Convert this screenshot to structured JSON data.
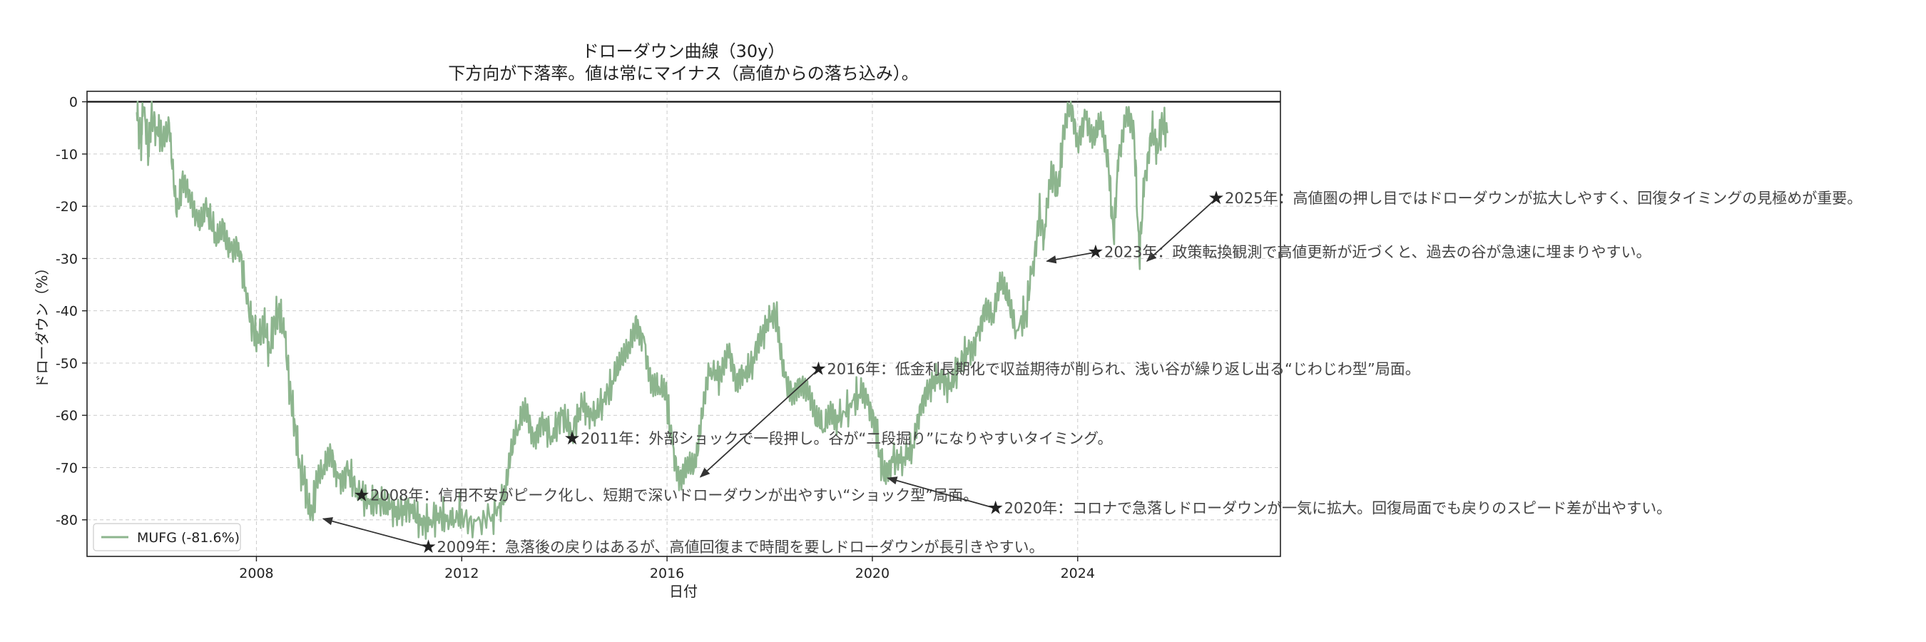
{
  "chart_data": {
    "type": "line",
    "title": "ドローダウン曲線（30y）",
    "subtitle": "下方向が下落率。値は常にマイナス（高値からの落ち込み）。",
    "xlabel": "日付",
    "ylabel": "ドローダウン（%）",
    "xlim": [
      2004.7,
      2027.95
    ],
    "ylim": [
      -87,
      2
    ],
    "x_ticks": [
      "2008",
      "2012",
      "2016",
      "2020",
      "2024"
    ],
    "y_ticks": [
      0,
      -10,
      -20,
      -30,
      -40,
      -50,
      -60,
      -70,
      -80
    ],
    "grid": true,
    "legend_position": "lower-left",
    "series": [
      {
        "name": "MUFG (-81.6%)",
        "color": "#8db58e",
        "points": [
          [
            2005.67,
            -2
          ],
          [
            2005.75,
            -8
          ],
          [
            2005.8,
            -1
          ],
          [
            2005.9,
            -10
          ],
          [
            2005.95,
            -3
          ],
          [
            2006.05,
            -5
          ],
          [
            2006.15,
            -6
          ],
          [
            2006.3,
            -4
          ],
          [
            2006.45,
            -22
          ],
          [
            2006.55,
            -15
          ],
          [
            2006.7,
            -17
          ],
          [
            2006.85,
            -22
          ],
          [
            2007.0,
            -20
          ],
          [
            2007.2,
            -25
          ],
          [
            2007.35,
            -23
          ],
          [
            2007.5,
            -28
          ],
          [
            2007.65,
            -27
          ],
          [
            2007.85,
            -40
          ],
          [
            2007.95,
            -44
          ],
          [
            2008.05,
            -46
          ],
          [
            2008.15,
            -42
          ],
          [
            2008.25,
            -48
          ],
          [
            2008.35,
            -42
          ],
          [
            2008.45,
            -40
          ],
          [
            2008.55,
            -45
          ],
          [
            2008.65,
            -55
          ],
          [
            2008.75,
            -62
          ],
          [
            2008.85,
            -70
          ],
          [
            2008.95,
            -73
          ],
          [
            2009.05,
            -80
          ],
          [
            2009.15,
            -75
          ],
          [
            2009.3,
            -71
          ],
          [
            2009.45,
            -67
          ],
          [
            2009.6,
            -72
          ],
          [
            2009.75,
            -70
          ],
          [
            2009.95,
            -74
          ],
          [
            2010.2,
            -77
          ],
          [
            2010.4,
            -76
          ],
          [
            2010.6,
            -78
          ],
          [
            2010.8,
            -79
          ],
          [
            2011.0,
            -77
          ],
          [
            2011.2,
            -81
          ],
          [
            2011.4,
            -80
          ],
          [
            2011.6,
            -79
          ],
          [
            2011.8,
            -81
          ],
          [
            2012.0,
            -78
          ],
          [
            2012.3,
            -80
          ],
          [
            2012.6,
            -79
          ],
          [
            2012.8,
            -77
          ],
          [
            2012.95,
            -68
          ],
          [
            2013.1,
            -63
          ],
          [
            2013.25,
            -60
          ],
          [
            2013.4,
            -66
          ],
          [
            2013.55,
            -61
          ],
          [
            2013.75,
            -64
          ],
          [
            2013.95,
            -60
          ],
          [
            2014.15,
            -63
          ],
          [
            2014.35,
            -58
          ],
          [
            2014.55,
            -61
          ],
          [
            2014.75,
            -57
          ],
          [
            2014.95,
            -54
          ],
          [
            2015.1,
            -50
          ],
          [
            2015.25,
            -46
          ],
          [
            2015.4,
            -41
          ],
          [
            2015.55,
            -45
          ],
          [
            2015.7,
            -54
          ],
          [
            2015.85,
            -55
          ],
          [
            2016.0,
            -58
          ],
          [
            2016.1,
            -65
          ],
          [
            2016.25,
            -71
          ],
          [
            2016.4,
            -68
          ],
          [
            2016.55,
            -70
          ],
          [
            2016.7,
            -60
          ],
          [
            2016.85,
            -51
          ],
          [
            2017.05,
            -53
          ],
          [
            2017.2,
            -49
          ],
          [
            2017.35,
            -55
          ],
          [
            2017.5,
            -52
          ],
          [
            2017.7,
            -50
          ],
          [
            2017.85,
            -45
          ],
          [
            2018.05,
            -40
          ],
          [
            2018.15,
            -42
          ],
          [
            2018.3,
            -52
          ],
          [
            2018.45,
            -55
          ],
          [
            2018.6,
            -54
          ],
          [
            2018.75,
            -57
          ],
          [
            2018.9,
            -62
          ],
          [
            2019.05,
            -63
          ],
          [
            2019.2,
            -59
          ],
          [
            2019.35,
            -61
          ],
          [
            2019.55,
            -58
          ],
          [
            2019.75,
            -56
          ],
          [
            2019.9,
            -58
          ],
          [
            2020.05,
            -61
          ],
          [
            2020.15,
            -68
          ],
          [
            2020.25,
            -72
          ],
          [
            2020.4,
            -69
          ],
          [
            2020.6,
            -68
          ],
          [
            2020.8,
            -66
          ],
          [
            2020.95,
            -60
          ],
          [
            2021.1,
            -55
          ],
          [
            2021.3,
            -52
          ],
          [
            2021.5,
            -55
          ],
          [
            2021.7,
            -50
          ],
          [
            2021.9,
            -47
          ],
          [
            2022.05,
            -44
          ],
          [
            2022.2,
            -39
          ],
          [
            2022.35,
            -42
          ],
          [
            2022.5,
            -36
          ],
          [
            2022.65,
            -39
          ],
          [
            2022.8,
            -44
          ],
          [
            2023.0,
            -40
          ],
          [
            2023.1,
            -33
          ],
          [
            2023.25,
            -21
          ],
          [
            2023.35,
            -26
          ],
          [
            2023.5,
            -13
          ],
          [
            2023.6,
            -18
          ],
          [
            2023.7,
            -9
          ],
          [
            2023.85,
            -1
          ],
          [
            2024.0,
            -8
          ],
          [
            2024.15,
            -2
          ],
          [
            2024.3,
            -6
          ],
          [
            2024.45,
            -2
          ],
          [
            2024.6,
            -12
          ],
          [
            2024.7,
            -26
          ],
          [
            2024.8,
            -10
          ],
          [
            2024.95,
            -1
          ],
          [
            2025.1,
            -6
          ],
          [
            2025.2,
            -30
          ],
          [
            2025.3,
            -15
          ],
          [
            2025.45,
            -5
          ],
          [
            2025.55,
            -9
          ],
          [
            2025.65,
            -4
          ],
          [
            2025.75,
            -6
          ]
        ]
      }
    ],
    "annotations": [
      {
        "text": "2025年：高値圏の押し目ではドローダウンが拡大しやすく、回復タイミングの見極めが重要。",
        "star": [
          2026.7,
          -18.5
        ],
        "target": [
          2025.35,
          -30.5
        ]
      },
      {
        "text": "2023年：政策転換観測で高値更新が近づくと、過去の谷が急速に埋まりやすい。",
        "star": [
          2024.35,
          -28.8
        ],
        "target": [
          2023.4,
          -30.5
        ]
      },
      {
        "text": "2016年：低金利長期化で収益期待が削られ、浅い谷が繰り返し出る“じわじわ型”局面。",
        "star": [
          2018.95,
          -51.2
        ],
        "target": [
          2016.65,
          -71.8
        ]
      },
      {
        "text": "2011年：外部ショックで一段押し。谷が“二段掘り”になりやすいタイミング。",
        "star": [
          2014.15,
          -64.5
        ],
        "target": null
      },
      {
        "text": "2008年：信用不安がピーク化し、短期で深いドローダウンが出やすい“ショック型”局面。",
        "star": [
          2010.05,
          -75.3
        ],
        "target": null
      },
      {
        "text": "2020年：コロナで急落しドローダウンが一気に拡大。回復局面でも戻りのスピード差が出やすい。",
        "star": [
          2022.4,
          -77.8
        ],
        "target": [
          2020.3,
          -72.0
        ]
      },
      {
        "text": "2009年：急落後の戻りはあるが、高値回復まで時間を要しドローダウンが長引きやすい。",
        "star": [
          2011.35,
          -85.2
        ],
        "target": [
          2009.3,
          -79.8
        ]
      }
    ]
  }
}
